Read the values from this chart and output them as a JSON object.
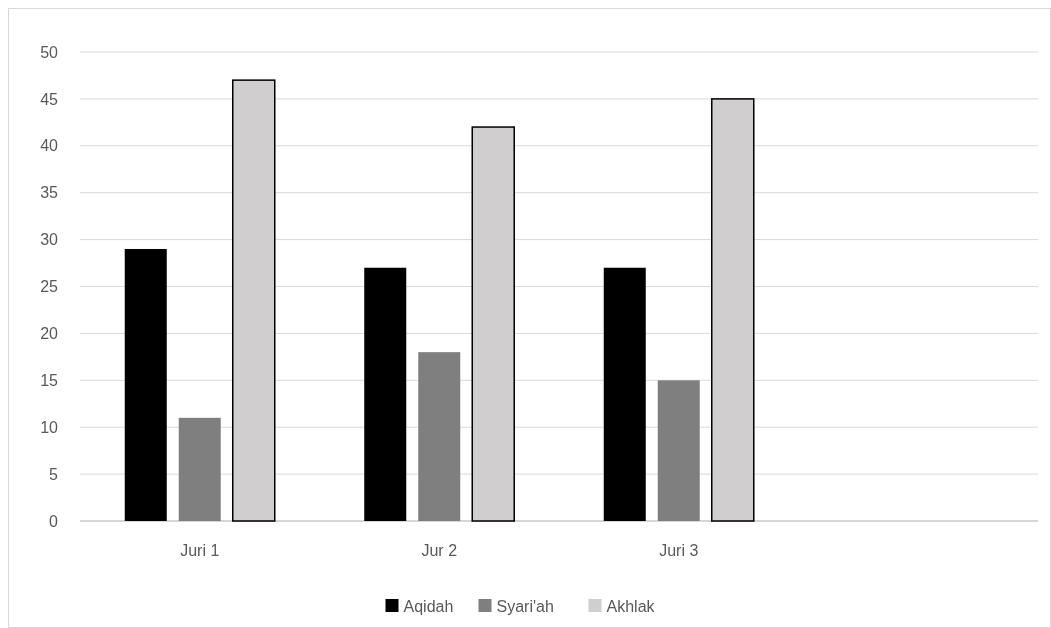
{
  "chart_data": {
    "type": "bar",
    "categories": [
      "Juri 1",
      "Jur 2",
      "Juri 3",
      null
    ],
    "series": [
      {
        "name": "Aqidah",
        "color": "#000000",
        "values": [
          29,
          27,
          27,
          null
        ]
      },
      {
        "name": "Syari'ah",
        "color": "#7f7f7f",
        "values": [
          11,
          18,
          15,
          null
        ]
      },
      {
        "name": "Akhlak",
        "color": "#d0cece",
        "values": [
          47,
          42,
          45,
          null
        ]
      }
    ],
    "ylim": [
      0,
      50
    ],
    "yticks": [
      0,
      5,
      10,
      15,
      20,
      25,
      30,
      35,
      40,
      45,
      50
    ],
    "grid": "y",
    "legend": "bottom"
  }
}
